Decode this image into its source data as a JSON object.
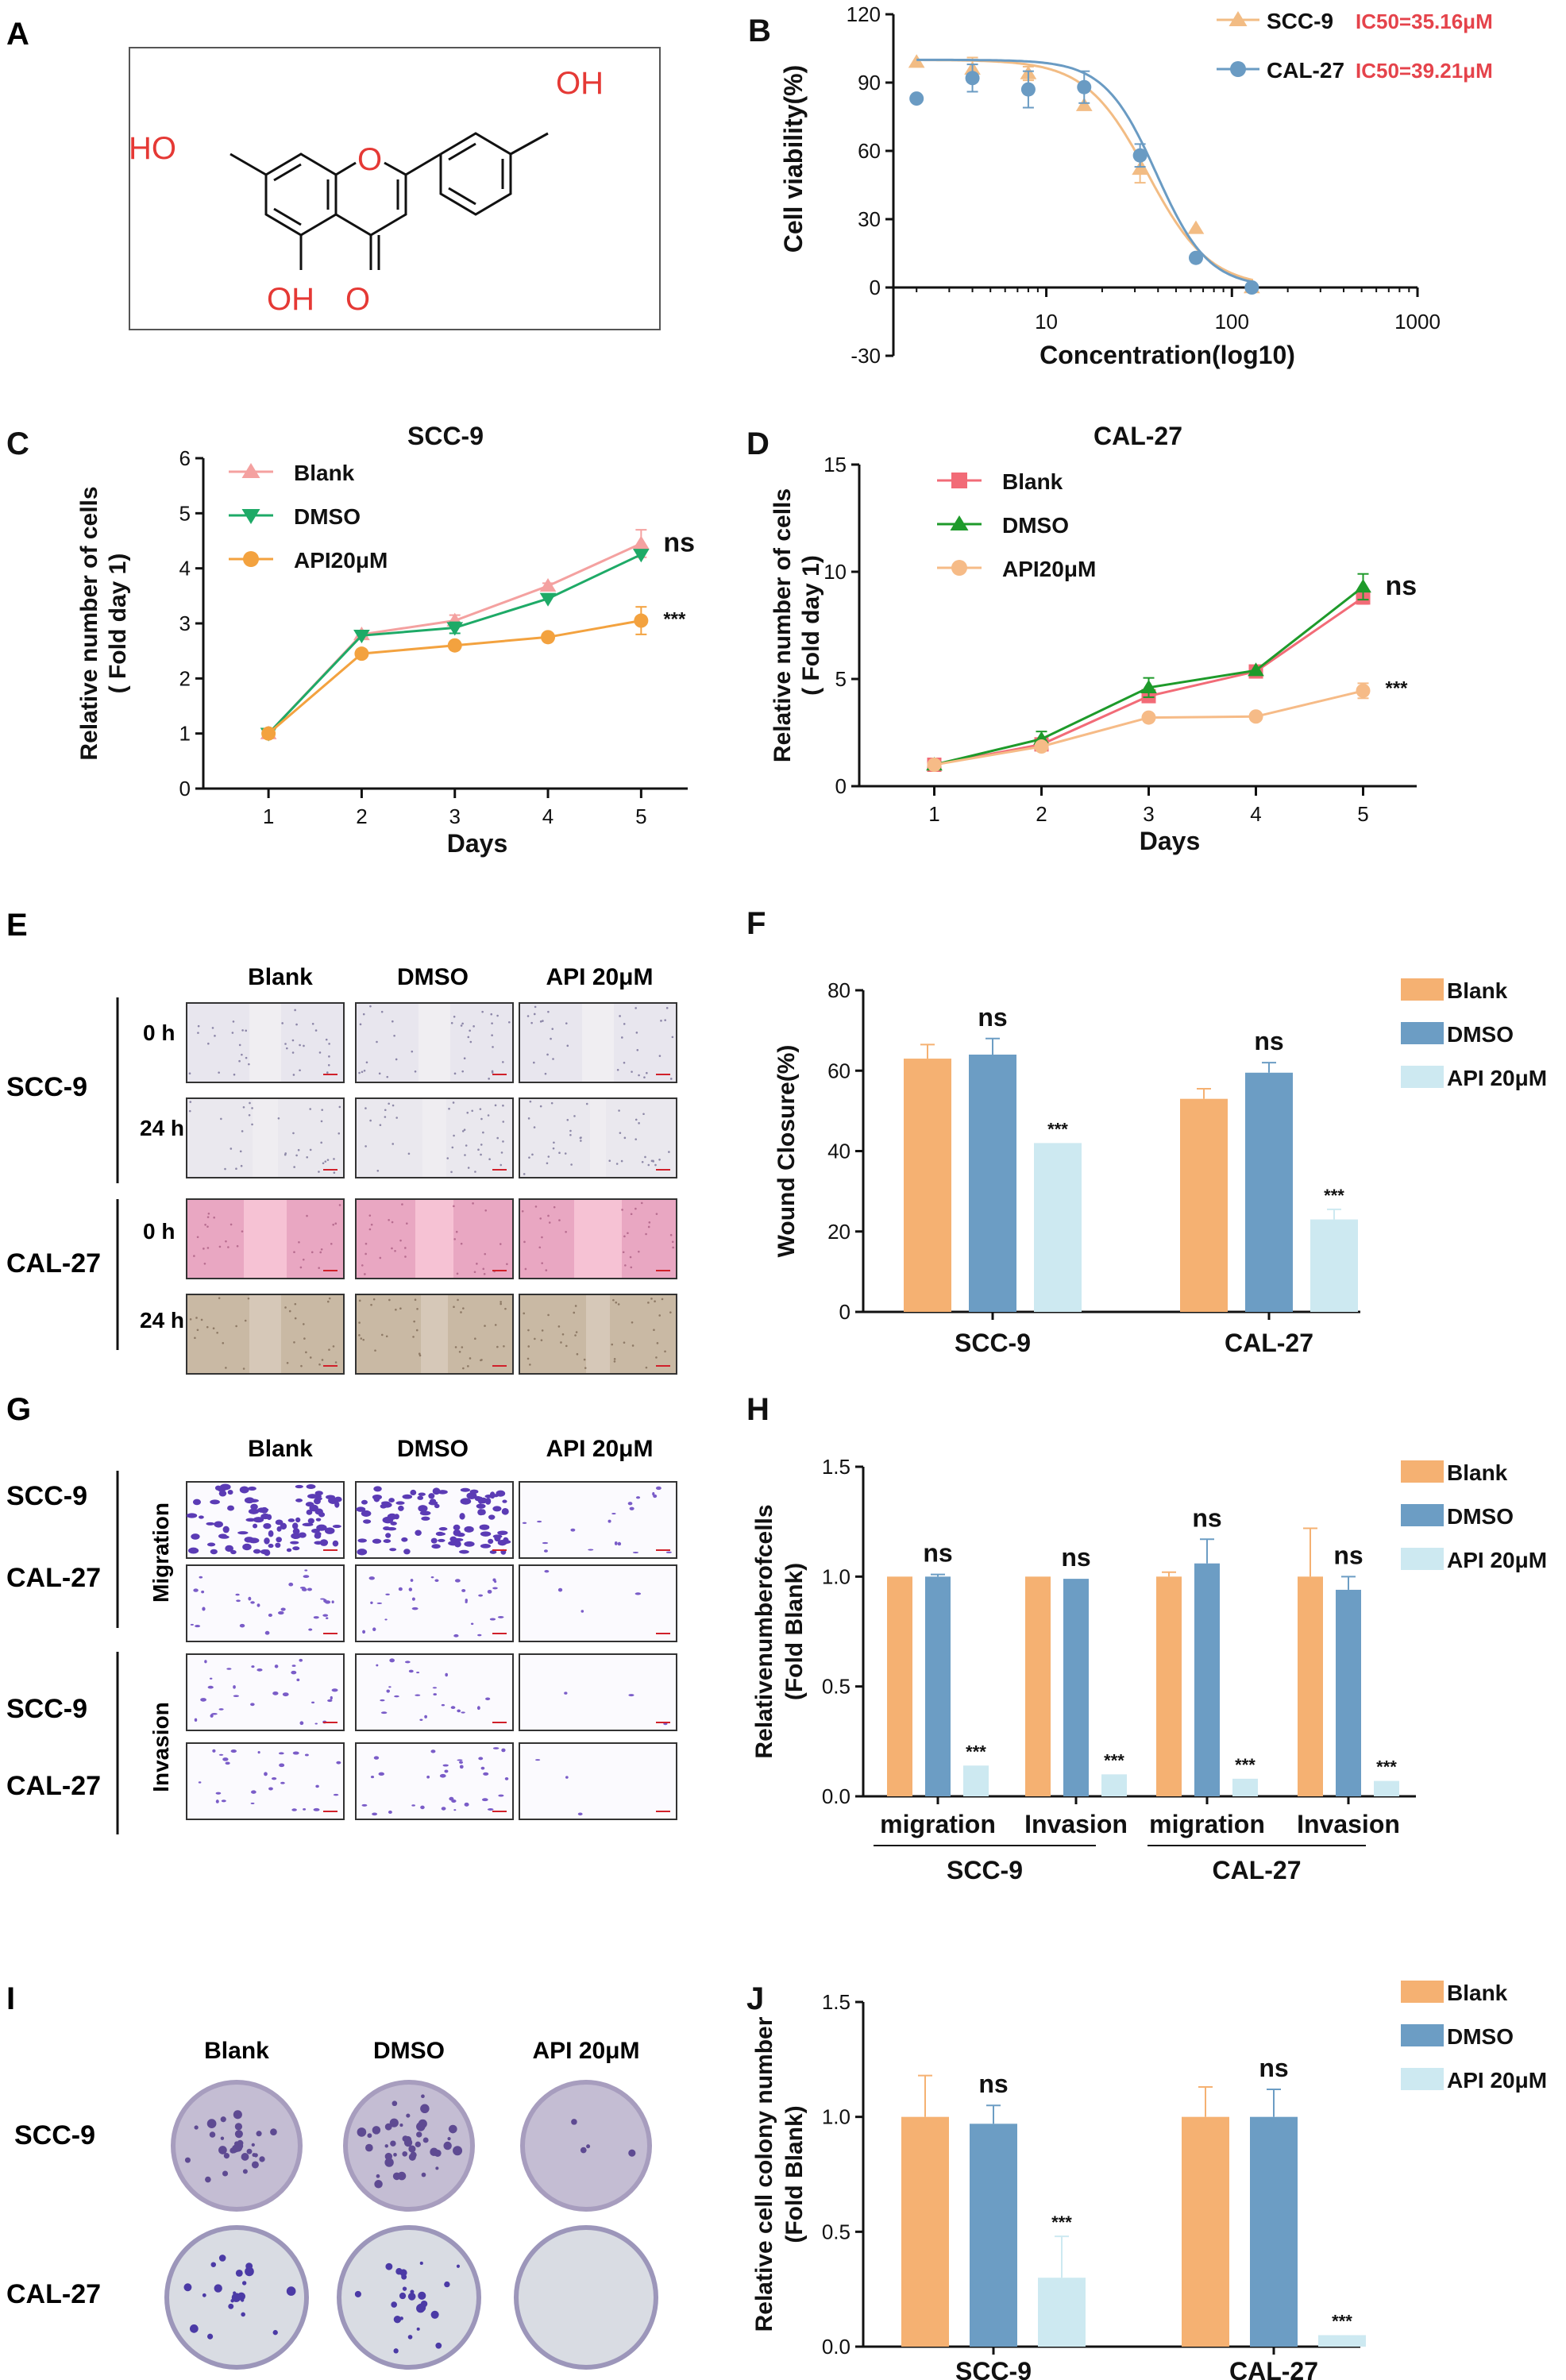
{
  "colors": {
    "orange": "#F5B172",
    "blue": "#6C9DC4",
    "light_blue": "#CDE9F1",
    "tri_orange": "#F2BC84",
    "circ_blue": "#6A9BC3",
    "pink": "#F4A1A0",
    "green": "#1EAA67",
    "dot_orange": "#F3A23F",
    "red_square": "#F26B77",
    "dark_green": "#1E9A2A",
    "peach": "#F6BB87",
    "ic50_red": "#E5434B",
    "atom_red": "#E53935"
  },
  "panels": {
    "A": {
      "label": "A",
      "atoms": {
        "oh_right": "OH",
        "ho_left": "HO",
        "o_ring": "O",
        "oh_bottom": "OH",
        "o_bottom": "O"
      }
    },
    "E": {
      "label": "E",
      "columns": [
        "Blank",
        "DMSO",
        "API 20μM"
      ],
      "groups": [
        {
          "name": "SCC-9",
          "times": [
            "0 h",
            "24 h"
          ]
        },
        {
          "name": "CAL-27",
          "times": [
            "0 h",
            "24 h"
          ]
        }
      ]
    },
    "G": {
      "label": "G",
      "columns": [
        "Blank",
        "DMSO",
        "API 20μM"
      ],
      "row_labels": [
        "SCC-9",
        "CAL-27",
        "SCC-9",
        "CAL-27"
      ],
      "groups": [
        "Migration",
        "Invasion"
      ]
    },
    "I": {
      "label": "I",
      "columns": [
        "Blank",
        "DMSO",
        "API 20μM"
      ],
      "rows": [
        "SCC-9",
        "CAL-27"
      ]
    }
  },
  "chart_data": [
    {
      "id": "B",
      "label": "B",
      "type": "scatter",
      "xlabel": "Concentration(log10)",
      "ylabel": "Cell viability(%)",
      "xscale": "log",
      "xlim": [
        1.5,
        1000
      ],
      "ylim": [
        -30,
        120
      ],
      "xticks": [
        10,
        100,
        1000
      ],
      "yticks": [
        -30,
        0,
        30,
        60,
        90,
        120
      ],
      "x_tick_labels": [
        "10",
        "100",
        "1000"
      ],
      "y_tick_labels": [
        "-30",
        "0",
        "30",
        "60",
        "90",
        "120"
      ],
      "legend_position": "top-right",
      "series": [
        {
          "name": "SCC-9",
          "ic50_label": "IC50=35.16μM",
          "marker": "triangle",
          "x": [
            2,
            4,
            8,
            16,
            32,
            64,
            128
          ],
          "y": [
            99,
            96,
            94,
            80,
            52,
            26,
            0
          ],
          "err": [
            0,
            5,
            3,
            0,
            6,
            0,
            0
          ],
          "ic50": 35.16
        },
        {
          "name": "CAL-27",
          "ic50_label": "IC50=39.21μM",
          "marker": "circle",
          "x": [
            2,
            4,
            8,
            16,
            32,
            64,
            128
          ],
          "y": [
            83,
            92,
            87,
            88,
            58,
            13,
            0
          ],
          "err": [
            0,
            6,
            8,
            7,
            5,
            0,
            0
          ],
          "ic50": 39.21
        }
      ]
    },
    {
      "id": "C",
      "label": "C",
      "type": "line",
      "title": "SCC-9",
      "xlabel": "Days",
      "ylabel": "Relative number of cells",
      "ylabel2": "( Fold day 1)",
      "x": [
        1,
        2,
        3,
        4,
        5
      ],
      "xlim": [
        0.3,
        5.5
      ],
      "ylim": [
        0,
        6
      ],
      "yticks": [
        0,
        1,
        2,
        3,
        4,
        5,
        6
      ],
      "x_tick_labels": [
        "1",
        "2",
        "3",
        "4",
        "5"
      ],
      "y_tick_labels": [
        "0",
        "1",
        "2",
        "3",
        "4",
        "5",
        "6"
      ],
      "legend_position": "top-left",
      "annotations": [
        {
          "text": "ns",
          "x": 5,
          "y": 4.45,
          "size": "large"
        },
        {
          "text": "***",
          "x": 5,
          "y": 3.05,
          "size": "small"
        }
      ],
      "series": [
        {
          "name": "Blank",
          "marker": "triangle-up",
          "y": [
            1.0,
            2.8,
            3.05,
            3.68,
            4.45
          ],
          "err": [
            0,
            0,
            0.1,
            0.05,
            0.25
          ]
        },
        {
          "name": "DMSO",
          "marker": "triangle-down",
          "y": [
            1.0,
            2.78,
            2.92,
            3.45,
            4.25
          ],
          "err": [
            0,
            0,
            0.1,
            0,
            0
          ]
        },
        {
          "name": "API20μM",
          "marker": "circle",
          "y": [
            1.0,
            2.45,
            2.6,
            2.75,
            3.05
          ],
          "err": [
            0,
            0,
            0.05,
            0.05,
            0.25
          ]
        }
      ]
    },
    {
      "id": "D",
      "label": "D",
      "type": "line",
      "title": "CAL-27",
      "xlabel": "Days",
      "ylabel": "Relative number of cells",
      "ylabel2": "( Fold day 1)",
      "x": [
        1,
        2,
        3,
        4,
        5
      ],
      "xlim": [
        0.3,
        5.5
      ],
      "ylim": [
        0,
        15
      ],
      "yticks": [
        0,
        5,
        10,
        15
      ],
      "x_tick_labels": [
        "1",
        "2",
        "3",
        "4",
        "5"
      ],
      "y_tick_labels": [
        "0",
        "5",
        "10",
        "15"
      ],
      "legend_position": "top-left",
      "annotations": [
        {
          "text": "ns",
          "x": 5,
          "y": 9.3,
          "size": "large"
        },
        {
          "text": "***",
          "x": 5,
          "y": 4.5,
          "size": "small"
        }
      ],
      "series": [
        {
          "name": "Blank",
          "marker": "square",
          "y": [
            1.0,
            1.95,
            4.2,
            5.35,
            8.8
          ],
          "err": [
            0,
            0,
            0,
            0,
            0.3
          ]
        },
        {
          "name": "DMSO",
          "marker": "triangle",
          "y": [
            1.0,
            2.2,
            4.6,
            5.4,
            9.3
          ],
          "err": [
            0,
            0.35,
            0.45,
            0,
            0.6
          ]
        },
        {
          "name": "API20μM",
          "marker": "circle",
          "y": [
            1.0,
            1.85,
            3.2,
            3.25,
            4.45
          ],
          "err": [
            0,
            0,
            0,
            0,
            0.35
          ]
        }
      ]
    },
    {
      "id": "F",
      "label": "F",
      "type": "bar",
      "ylabel": "Wound  Closure(%)",
      "ylim": [
        0,
        80
      ],
      "yticks": [
        0,
        20,
        40,
        60,
        80
      ],
      "y_tick_labels": [
        "0",
        "20",
        "40",
        "60",
        "80"
      ],
      "categories": [
        "SCC-9",
        "CAL-27"
      ],
      "legend_position": "top-right",
      "series": [
        {
          "name": "Blank",
          "values": [
            63,
            53
          ],
          "err": [
            3.5,
            2.5
          ]
        },
        {
          "name": "DMSO",
          "values": [
            64,
            59.5
          ],
          "err": [
            4,
            2.5
          ]
        },
        {
          "name": "API 20μM",
          "values": [
            42,
            23
          ],
          "err": [
            0,
            2.5
          ]
        }
      ],
      "annotations": [
        [
          "",
          "ns",
          "***"
        ],
        [
          "",
          "ns",
          "***"
        ]
      ]
    },
    {
      "id": "H",
      "label": "H",
      "type": "bar",
      "ylabel": "Relativenumberofcells",
      "ylabel2": "(Fold Blank)",
      "ylim": [
        0,
        1.5
      ],
      "yticks": [
        0,
        0.5,
        1.0,
        1.5
      ],
      "y_tick_labels": [
        "0.0",
        "0.5",
        "1.0",
        "1.5"
      ],
      "categories": [
        "migration",
        "Invasion",
        "migration",
        "Invasion"
      ],
      "group_labels": [
        "SCC-9",
        "CAL-27"
      ],
      "legend_position": "top-right",
      "series": [
        {
          "name": "Blank",
          "values": [
            1.0,
            1.0,
            1.0,
            1.0
          ],
          "err": [
            0,
            0,
            0.02,
            0.22
          ]
        },
        {
          "name": "DMSO",
          "values": [
            1.0,
            0.99,
            1.06,
            0.94
          ],
          "err": [
            0.01,
            0,
            0.11,
            0.06
          ]
        },
        {
          "name": "API 20μM",
          "values": [
            0.14,
            0.1,
            0.08,
            0.07
          ],
          "err": [
            0,
            0,
            0,
            0
          ]
        }
      ],
      "annotations": [
        [
          "",
          "ns",
          "***"
        ],
        [
          "",
          "ns",
          "***"
        ],
        [
          "",
          "ns",
          "***"
        ],
        [
          "",
          "ns",
          "***"
        ]
      ]
    },
    {
      "id": "J",
      "label": "J",
      "type": "bar",
      "ylabel": "Relative cell colony number",
      "ylabel2": "(Fold Blank)",
      "ylim": [
        0,
        1.5
      ],
      "yticks": [
        0,
        0.5,
        1.0,
        1.5
      ],
      "y_tick_labels": [
        "0.0",
        "0.5",
        "1.0",
        "1.5"
      ],
      "categories": [
        "SCC-9",
        "CAL-27"
      ],
      "legend_position": "top-right",
      "series": [
        {
          "name": "Blank",
          "values": [
            1.0,
            1.0
          ],
          "err": [
            0.18,
            0.13
          ]
        },
        {
          "name": "DMSO",
          "values": [
            0.97,
            1.0
          ],
          "err": [
            0.08,
            0.12
          ]
        },
        {
          "name": "API 20μM",
          "values": [
            0.3,
            0.05
          ],
          "err": [
            0.18,
            0
          ]
        }
      ],
      "annotations": [
        [
          "",
          "ns",
          "***"
        ],
        [
          "",
          "ns",
          "***"
        ]
      ]
    }
  ]
}
